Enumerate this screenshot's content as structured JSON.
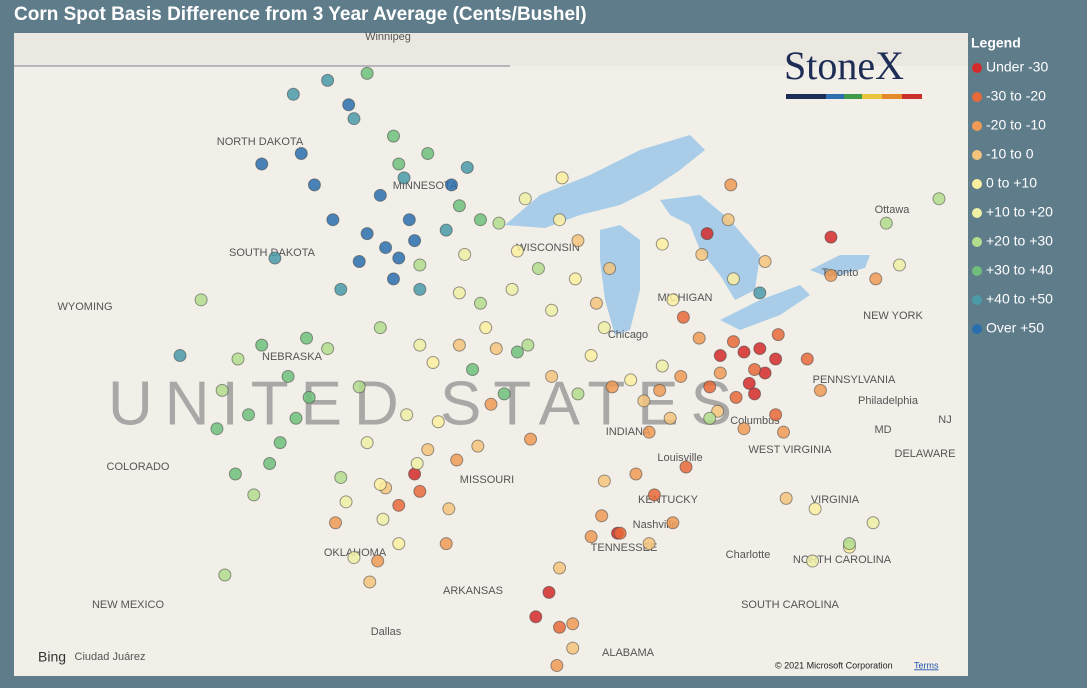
{
  "chart_data": {
    "type": "scatter",
    "title": "Corn Spot Basis Difference from 3 Year Average (Cents/Bushel)",
    "legend_title": "Legend",
    "logo": "StoneX",
    "xlim": [
      -110.9,
      -74.7
    ],
    "ylim": [
      31.5,
      49.96
    ],
    "map_labels": [
      "Winnipeg",
      "NORTH DAKOTA",
      "MINNESOTA",
      "SOUTH DAKOTA",
      "WYOMING",
      "NEBRASKA",
      "COLORADO",
      "NEW MEXICO",
      "OKLAHOMA",
      "Dallas",
      "MISSOURI",
      "ARKANSAS",
      "KENTUCKY",
      "TENNESSEE",
      "Nashville",
      "Louisville",
      "Chicago",
      "INDIANA",
      "MICHIGAN",
      "WISCONSIN",
      "NEW YORK",
      "PENNSYLVANIA",
      "Philadelphia",
      "Columbus",
      "WEST VIRGINIA",
      "VIRGINIA",
      "NORTH CAROLINA",
      "SOUTH CAROLINA",
      "Charlotte",
      "ALABAMA",
      "Ottawa",
      "Toronto",
      "MD",
      "NJ",
      "DELAWARE",
      "Ciudad Juárez",
      "UNITED STATES"
    ],
    "attribution": "© 2021 Microsoft Corporation",
    "terms": "Terms",
    "provider": "Bing",
    "series": [
      {
        "name": "Under -30",
        "color": "#d42a2a",
        "x": [
          -83.2,
          -82.6,
          -82.4,
          -83,
          -82,
          -84.1,
          -95.7,
          -91.1,
          -90.6,
          -88,
          -79.9,
          -84.6,
          -82.8
        ],
        "y": [
          40.8,
          40.9,
          40.2,
          39.9,
          40.6,
          40.7,
          37.3,
          33.2,
          33.9,
          35.6,
          44.1,
          44.2,
          39.6
        ]
      },
      {
        "name": "-30 to -20",
        "color": "#e8693a",
        "x": [
          -83.6,
          -82.8,
          -84.5,
          -95.5,
          -96.3,
          -90.2,
          -86.6,
          -87.9,
          -83.5,
          -80.8,
          -81.9,
          -85.5,
          -85.4,
          -82
        ],
        "y": [
          41.1,
          40.3,
          39.8,
          36.8,
          36.4,
          32.9,
          36.7,
          35.6,
          39.5,
          40.6,
          41.3,
          41.8,
          37.5,
          39
        ]
      },
      {
        "name": "-20 to -10",
        "color": "#ef9a55",
        "x": [
          -92.8,
          -94.1,
          -91.3,
          -88.2,
          -86.8,
          -85.6,
          -84.9,
          -84.1,
          -83.2,
          -87.3,
          -89,
          -89.7,
          -90.3,
          -97.1,
          -98.7,
          -88.6,
          -85.9,
          -79.9,
          -78.2,
          -81.7,
          -80.3,
          -83.7,
          -86.4,
          -94.5
        ],
        "y": [
          39.3,
          37.7,
          38.3,
          39.8,
          38.5,
          40.1,
          41.2,
          40.2,
          38.6,
          37.3,
          35.5,
          33,
          31.8,
          34.8,
          35.9,
          36.1,
          35.9,
          43,
          42.9,
          38.5,
          39.7,
          45.6,
          39.7,
          35.3
        ]
      },
      {
        "name": "-10 to 0",
        "color": "#f4c47c",
        "x": [
          -94,
          -92.6,
          -89.5,
          -88.3,
          -88.8,
          -90.5,
          -87,
          -86,
          -95.2,
          -96.8,
          -94.4,
          -84.8,
          -83.8,
          -82.4,
          -97.4,
          -93.3,
          -88.5,
          -86.8,
          -90.2,
          -89.7,
          -81.6,
          -84.2
        ],
        "y": [
          41,
          40.9,
          44,
          43.2,
          42.2,
          40.1,
          39.4,
          38.9,
          38,
          36.9,
          36.3,
          43.6,
          44.6,
          43.4,
          34.2,
          38.1,
          37.1,
          35.3,
          34.6,
          32.3,
          36.6,
          39.1
        ]
      },
      {
        "name": "0 to +10",
        "color": "#fbeea0",
        "x": [
          -93,
          -91.8,
          -89.6,
          -90.2,
          -95,
          -97,
          -96.3,
          -89,
          -87.5,
          -85.9,
          -83.6,
          -86.3,
          -94.8,
          -90.1,
          -79.2,
          -80.5
        ],
        "y": [
          41.5,
          43.7,
          42.9,
          44.6,
          40.5,
          37,
          35.3,
          40.7,
          40,
          42.3,
          42.9,
          43.9,
          38.8,
          45.8,
          35.2,
          36.3
        ]
      },
      {
        "name": "+10 to +20",
        "color": "#eef0a6",
        "x": [
          -96,
          -97.5,
          -98.3,
          -95.5,
          -94,
          -92,
          -90.5,
          -93.8,
          -96.9,
          -98,
          -95.6,
          -88.5,
          -86.3,
          -91.5,
          -77.3,
          -78.3,
          -80.6
        ],
        "y": [
          39,
          38.2,
          36.5,
          41,
          42.5,
          42.6,
          42,
          43.6,
          36,
          34.9,
          37.6,
          41.5,
          40.4,
          45.2,
          43.3,
          35.9,
          34.8
        ]
      },
      {
        "name": "+20 to +30",
        "color": "#b3dd8d",
        "x": [
          -103,
          -101.8,
          -98.5,
          -97,
          -95.5,
          -92.5,
          -91,
          -103.8,
          -102.9,
          -91.4,
          -97.8,
          -99,
          -93.2,
          -77.8,
          -75.8,
          -79.2,
          -84.5,
          -89.5,
          -102.4
        ],
        "y": [
          39.7,
          36.7,
          37.2,
          41.5,
          43.3,
          44.5,
          43.2,
          42.3,
          34.4,
          41,
          39.8,
          40.9,
          42.2,
          44.5,
          45.2,
          35.3,
          38.9,
          39.6,
          40.6
        ]
      },
      {
        "name": "+30 to +40",
        "color": "#6fbf7a",
        "x": [
          -97.5,
          -96.5,
          -95.2,
          -94,
          -101.5,
          -100.5,
          -99.7,
          -102,
          -100.8,
          -102.5,
          -101.2,
          -99.8,
          -93.5,
          -91.8,
          -92.3,
          -96.3,
          -93.2,
          -103.2,
          -100.2
        ],
        "y": [
          48.8,
          47,
          46.5,
          45,
          41,
          40.1,
          39.5,
          39,
          38.2,
          37.3,
          37.6,
          41.2,
          40.3,
          40.8,
          39.6,
          46.2,
          44.6,
          38.6,
          38.9
        ]
      },
      {
        "name": "+40 to +50",
        "color": "#4a9aa8",
        "x": [
          -99,
          -100.3,
          -98,
          -101,
          -94.5,
          -93.7,
          -95.5,
          -104.6,
          -96.1,
          -98.5,
          -82.6
        ],
        "y": [
          48.6,
          48.2,
          47.5,
          43.5,
          44.3,
          46.1,
          42.6,
          40.7,
          45.8,
          42.6,
          42.5
        ]
      },
      {
        "name": "Over +50",
        "color": "#2a6fad",
        "x": [
          -100,
          -99.5,
          -98.8,
          -97.5,
          -96.8,
          -96.3,
          -95.9,
          -97,
          -94.3,
          -96.5,
          -101.5,
          -98.2,
          -95.7,
          -97.8
        ],
        "y": [
          46.5,
          45.6,
          44.6,
          44.2,
          43.8,
          43.5,
          44.6,
          45.3,
          45.6,
          42.9,
          46.2,
          47.9,
          44,
          43.4
        ]
      }
    ]
  }
}
